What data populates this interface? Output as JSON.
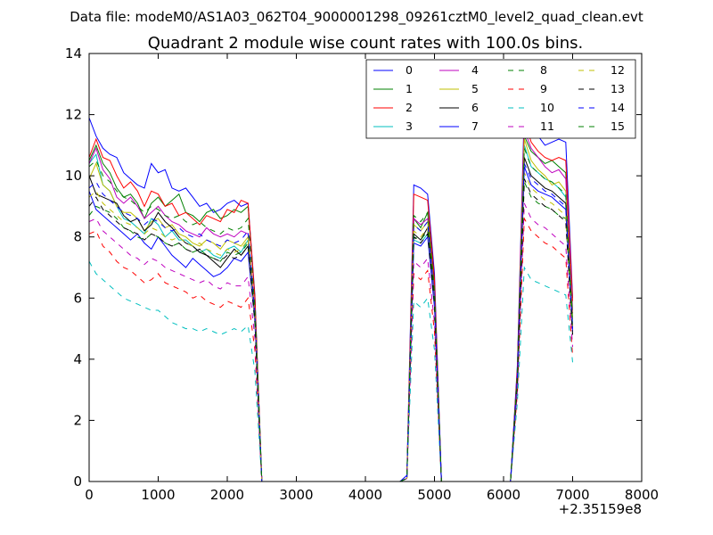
{
  "header": {
    "suptitle": "Data file: modeM0/AS1A03_062T04_9000001298_09261cztM0_level2_quad_clean.evt"
  },
  "chart_data": {
    "type": "line",
    "title": "Quadrant 2 module wise count rates with 100.0s bins.",
    "xlabel": "",
    "ylabel": "",
    "x_offset_label": "+2.35159e8",
    "xlim": [
      0,
      8000
    ],
    "ylim": [
      0,
      14
    ],
    "xticks": [
      0,
      1000,
      2000,
      3000,
      4000,
      5000,
      6000,
      7000,
      8000
    ],
    "yticks": [
      0,
      2,
      4,
      6,
      8,
      10,
      12,
      14
    ],
    "grid": false,
    "legend_position": "top-right",
    "legend_columns": 4,
    "x": [
      0,
      100,
      200,
      300,
      400,
      500,
      600,
      700,
      800,
      900,
      1000,
      1100,
      1200,
      1300,
      1400,
      1500,
      1600,
      1700,
      1800,
      1900,
      2000,
      2100,
      2200,
      2300,
      2400,
      2500,
      2600,
      2700,
      2800,
      2900,
      3000,
      3100,
      3200,
      3300,
      3400,
      3500,
      3600,
      3700,
      3800,
      3900,
      4000,
      4100,
      4200,
      4300,
      4400,
      4500,
      4600,
      4700,
      4800,
      4900,
      5000,
      5100,
      5200,
      5300,
      5400,
      5500,
      5600,
      5700,
      5800,
      5900,
      6000,
      6100,
      6200,
      6300,
      6400,
      6500,
      6600,
      6700,
      6800,
      6900,
      7000
    ],
    "series": [
      {
        "name": "0",
        "color": "#0000ff",
        "dashed": false,
        "values": [
          11.9,
          11.3,
          10.9,
          10.7,
          10.6,
          10.1,
          9.9,
          9.7,
          9.6,
          10.4,
          10.1,
          10.2,
          9.6,
          9.5,
          9.6,
          9.3,
          9.0,
          9.1,
          8.8,
          8.9,
          9.1,
          9.2,
          9.0,
          9.1,
          6.1,
          0,
          0,
          0,
          0,
          0,
          0,
          0,
          0,
          0,
          0,
          0,
          0,
          0,
          0,
          0,
          0,
          0,
          0,
          0,
          0,
          0,
          0.2,
          9.7,
          9.6,
          9.4,
          6.8,
          0,
          0,
          0,
          0,
          0,
          0,
          0,
          0,
          0,
          0,
          0,
          3.8,
          12.2,
          11.6,
          11.3,
          11.0,
          11.1,
          11.2,
          11.1,
          6.0
        ]
      },
      {
        "name": "1",
        "color": "#008000",
        "dashed": false,
        "values": [
          10.5,
          11.0,
          10.4,
          10.1,
          9.6,
          9.3,
          9.4,
          9.1,
          8.6,
          9.1,
          9.3,
          9.0,
          9.2,
          9.4,
          8.8,
          8.7,
          8.5,
          8.8,
          8.9,
          8.6,
          8.7,
          8.9,
          8.8,
          9.0,
          6.0,
          0,
          0,
          0,
          0,
          0,
          0,
          0,
          0,
          0,
          0,
          0,
          0,
          0,
          0,
          0,
          0,
          0,
          0,
          0,
          0,
          0,
          0.1,
          8.6,
          8.3,
          8.8,
          6.4,
          0,
          0,
          0,
          0,
          0,
          0,
          0,
          0,
          0,
          0,
          0,
          3.6,
          11.3,
          10.8,
          10.6,
          10.4,
          10.5,
          10.3,
          10.1,
          5.6
        ]
      },
      {
        "name": "2",
        "color": "#ff0000",
        "dashed": false,
        "values": [
          10.6,
          11.2,
          10.6,
          10.5,
          10.0,
          9.6,
          9.8,
          9.5,
          9.0,
          9.5,
          9.4,
          9.0,
          9.1,
          8.7,
          8.8,
          8.6,
          8.4,
          8.7,
          8.6,
          8.5,
          8.9,
          8.8,
          9.2,
          9.1,
          6.0,
          0,
          0,
          0,
          0,
          0,
          0,
          0,
          0,
          0,
          0,
          0,
          0,
          0,
          0,
          0,
          0,
          0,
          0,
          0,
          0,
          0,
          0.1,
          9.4,
          9.3,
          9.2,
          6.6,
          0,
          0,
          0,
          0,
          0,
          0,
          0,
          0,
          0,
          0,
          0,
          3.7,
          11.8,
          11.1,
          10.8,
          10.6,
          10.5,
          10.6,
          10.5,
          5.9
        ]
      },
      {
        "name": "3",
        "color": "#00bfbf",
        "dashed": false,
        "values": [
          10.4,
          10.7,
          9.7,
          9.5,
          9.0,
          8.6,
          8.5,
          8.3,
          8.1,
          8.6,
          8.4,
          8.0,
          8.2,
          7.9,
          7.9,
          7.7,
          7.5,
          7.6,
          7.4,
          7.3,
          7.6,
          7.7,
          7.5,
          7.9,
          5.3,
          0,
          0,
          0,
          0,
          0,
          0,
          0,
          0,
          0,
          0,
          0,
          0,
          0,
          0,
          0,
          0,
          0,
          0,
          0,
          0,
          0,
          0.1,
          7.9,
          7.8,
          8.1,
          5.8,
          0,
          0,
          0,
          0,
          0,
          0,
          0,
          0,
          0,
          0,
          0,
          3.3,
          11.0,
          10.3,
          10.1,
          9.9,
          9.8,
          9.6,
          9.3,
          5.1
        ]
      },
      {
        "name": "4",
        "color": "#bf00bf",
        "dashed": false,
        "values": [
          10.4,
          10.9,
          10.2,
          9.9,
          9.3,
          9.1,
          9.3,
          9.0,
          8.6,
          8.8,
          9.0,
          8.7,
          8.5,
          8.4,
          8.2,
          8.1,
          8.0,
          8.3,
          8.1,
          8.0,
          8.1,
          8.0,
          8.2,
          8.1,
          5.6,
          0,
          0,
          0,
          0,
          0,
          0,
          0,
          0,
          0,
          0,
          0,
          0,
          0,
          0,
          0,
          0,
          0,
          0,
          0,
          0,
          0,
          0.1,
          8.6,
          8.4,
          8.6,
          6.2,
          0,
          0,
          0,
          0,
          0,
          0,
          0,
          0,
          0,
          0,
          0,
          3.5,
          11.5,
          10.9,
          10.6,
          10.3,
          10.1,
          10.2,
          9.9,
          5.5
        ]
      },
      {
        "name": "5",
        "color": "#bfbf00",
        "dashed": false,
        "values": [
          9.9,
          10.4,
          9.7,
          9.5,
          9.0,
          8.8,
          8.8,
          8.6,
          8.2,
          8.5,
          8.6,
          8.3,
          8.4,
          8.1,
          8.0,
          7.8,
          7.7,
          7.9,
          7.8,
          7.6,
          7.9,
          7.8,
          7.7,
          8.0,
          5.4,
          0,
          0,
          0,
          0,
          0,
          0,
          0,
          0,
          0,
          0,
          0,
          0,
          0,
          0,
          0,
          0,
          0,
          0,
          0,
          0,
          0,
          0.1,
          8.4,
          8.2,
          8.5,
          6.1,
          0,
          0,
          0,
          0,
          0,
          0,
          0,
          0,
          0,
          0,
          0,
          3.4,
          11.2,
          10.5,
          10.2,
          10.0,
          9.7,
          9.8,
          9.5,
          5.3
        ]
      },
      {
        "name": "6",
        "color": "#000000",
        "dashed": false,
        "values": [
          10.0,
          9.4,
          9.3,
          9.2,
          9.1,
          8.7,
          8.5,
          8.6,
          8.2,
          8.4,
          8.8,
          8.5,
          8.3,
          8.0,
          7.8,
          7.7,
          7.5,
          7.4,
          7.2,
          7.0,
          7.3,
          7.6,
          7.4,
          7.7,
          5.3,
          0,
          0,
          0,
          0,
          0,
          0,
          0,
          0,
          0,
          0,
          0,
          0,
          0,
          0,
          0,
          0,
          0,
          0,
          0,
          0,
          0,
          0.1,
          8.1,
          7.9,
          8.3,
          5.9,
          0,
          0,
          0,
          0,
          0,
          0,
          0,
          0,
          0,
          0,
          0,
          3.4,
          10.6,
          10.0,
          9.8,
          9.6,
          9.5,
          9.3,
          9.1,
          5.0
        ]
      },
      {
        "name": "7",
        "color": "#0000ff",
        "dashed": false,
        "values": [
          9.5,
          8.9,
          8.7,
          8.5,
          8.3,
          8.1,
          7.9,
          8.1,
          7.8,
          7.6,
          8.0,
          7.7,
          7.4,
          7.2,
          7.0,
          7.3,
          7.1,
          6.9,
          6.7,
          6.8,
          7.0,
          7.3,
          7.2,
          7.5,
          5.2,
          0,
          0,
          0,
          0,
          0,
          0,
          0,
          0,
          0,
          0,
          0,
          0,
          0,
          0,
          0,
          0,
          0,
          0,
          0,
          0,
          0,
          0.1,
          7.8,
          7.7,
          8.0,
          5.7,
          0,
          0,
          0,
          0,
          0,
          0,
          0,
          0,
          0,
          0,
          0,
          3.3,
          10.3,
          9.7,
          9.5,
          9.4,
          9.3,
          9.1,
          8.9,
          4.9
        ]
      },
      {
        "name": "8",
        "color": "#008000",
        "dashed": true,
        "values": [
          8.7,
          9.0,
          8.9,
          8.8,
          8.6,
          8.3,
          8.2,
          8.0,
          7.9,
          8.1,
          8.0,
          7.8,
          7.7,
          7.8,
          7.6,
          7.5,
          7.6,
          7.4,
          7.3,
          7.2,
          7.5,
          7.4,
          7.5,
          7.8,
          5.2,
          0,
          0,
          0,
          0,
          0,
          0,
          0,
          0,
          0,
          0,
          0,
          0,
          0,
          0,
          0,
          0,
          0,
          0,
          0,
          0,
          0,
          0.1,
          8.0,
          7.9,
          8.2,
          5.8,
          0,
          0,
          0,
          0,
          0,
          0,
          0,
          0,
          0,
          0,
          0,
          3.2,
          9.8,
          9.3,
          9.1,
          9.0,
          8.9,
          8.7,
          8.6,
          4.8
        ]
      },
      {
        "name": "9",
        "color": "#ff0000",
        "dashed": true,
        "values": [
          8.1,
          8.2,
          7.7,
          7.5,
          7.2,
          7.0,
          6.9,
          6.7,
          6.5,
          6.6,
          6.8,
          6.5,
          6.4,
          6.3,
          6.2,
          6.0,
          6.1,
          5.9,
          5.8,
          5.7,
          5.9,
          5.8,
          5.7,
          6.0,
          4.3,
          0,
          0,
          0,
          0,
          0,
          0,
          0,
          0,
          0,
          0,
          0,
          0,
          0,
          0,
          0,
          0,
          0,
          0,
          0,
          0,
          0,
          0.1,
          6.8,
          6.6,
          6.9,
          4.9,
          0,
          0,
          0,
          0,
          0,
          0,
          0,
          0,
          0,
          0,
          0,
          2.9,
          8.6,
          8.2,
          8.0,
          7.8,
          7.7,
          7.5,
          7.3,
          4.1
        ]
      },
      {
        "name": "10",
        "color": "#00bfbf",
        "dashed": true,
        "values": [
          7.2,
          6.8,
          6.6,
          6.4,
          6.2,
          6.0,
          5.9,
          5.8,
          5.7,
          5.6,
          5.6,
          5.4,
          5.2,
          5.1,
          5.0,
          5.0,
          4.9,
          5.0,
          4.9,
          4.8,
          4.9,
          5.0,
          4.9,
          5.1,
          3.6,
          0,
          0,
          0,
          0,
          0,
          0,
          0,
          0,
          0,
          0,
          0,
          0,
          0,
          0,
          0,
          0,
          0,
          0,
          0,
          0,
          0,
          0.1,
          5.9,
          5.7,
          6.0,
          4.3,
          0,
          0,
          0,
          0,
          0,
          0,
          0,
          0,
          0,
          0,
          0,
          2.6,
          7.0,
          6.6,
          6.5,
          6.4,
          6.3,
          6.2,
          6.1,
          3.9
        ]
      },
      {
        "name": "11",
        "color": "#bf00bf",
        "dashed": true,
        "values": [
          8.5,
          8.6,
          8.2,
          8.0,
          7.8,
          7.6,
          7.4,
          7.3,
          7.1,
          7.3,
          7.2,
          7.0,
          6.9,
          6.8,
          6.7,
          6.6,
          6.5,
          6.6,
          6.4,
          6.3,
          6.5,
          6.4,
          6.4,
          6.7,
          4.7,
          0,
          0,
          0,
          0,
          0,
          0,
          0,
          0,
          0,
          0,
          0,
          0,
          0,
          0,
          0,
          0,
          0,
          0,
          0,
          0,
          0,
          0.1,
          7.2,
          7.0,
          7.3,
          5.2,
          0,
          0,
          0,
          0,
          0,
          0,
          0,
          0,
          0,
          0,
          0,
          3.0,
          9.1,
          8.6,
          8.4,
          8.3,
          8.1,
          7.9,
          7.7,
          4.4
        ]
      },
      {
        "name": "12",
        "color": "#bfbf00",
        "dashed": true,
        "values": [
          9.3,
          9.5,
          9.1,
          8.9,
          8.7,
          8.5,
          8.4,
          8.3,
          8.1,
          8.3,
          8.2,
          8.0,
          7.9,
          8.0,
          7.8,
          7.7,
          7.8,
          7.6,
          7.5,
          7.4,
          7.6,
          7.5,
          7.6,
          7.9,
          5.3,
          0,
          0,
          0,
          0,
          0,
          0,
          0,
          0,
          0,
          0,
          0,
          0,
          0,
          0,
          0,
          0,
          0,
          0,
          0,
          0,
          0,
          0.1,
          8.2,
          8.0,
          8.3,
          5.9,
          0,
          0,
          0,
          0,
          0,
          0,
          0,
          0,
          0,
          0,
          0,
          3.3,
          10.1,
          9.6,
          9.4,
          9.2,
          9.1,
          8.9,
          8.7,
          4.9
        ]
      },
      {
        "name": "13",
        "color": "#000000",
        "dashed": true,
        "values": [
          9.0,
          9.3,
          8.9,
          8.7,
          8.5,
          8.3,
          8.2,
          8.1,
          7.9,
          8.1,
          8.0,
          7.8,
          7.7,
          7.8,
          7.6,
          7.5,
          7.6,
          7.4,
          7.3,
          7.2,
          7.4,
          7.3,
          7.4,
          7.7,
          5.2,
          0,
          0,
          0,
          0,
          0,
          0,
          0,
          0,
          0,
          0,
          0,
          0,
          0,
          0,
          0,
          0,
          0,
          0,
          0,
          0,
          0,
          0.1,
          8.0,
          7.8,
          8.1,
          5.8,
          0,
          0,
          0,
          0,
          0,
          0,
          0,
          0,
          0,
          0,
          0,
          3.2,
          9.9,
          9.4,
          9.2,
          9.0,
          8.9,
          8.7,
          8.5,
          4.8
        ]
      },
      {
        "name": "14",
        "color": "#0000ff",
        "dashed": true,
        "values": [
          9.6,
          9.8,
          9.4,
          9.2,
          9.0,
          8.8,
          8.7,
          8.6,
          8.4,
          8.6,
          8.5,
          8.3,
          8.2,
          8.3,
          8.1,
          8.0,
          8.1,
          7.9,
          7.8,
          7.7,
          7.9,
          7.8,
          7.9,
          8.2,
          5.5,
          0,
          0,
          0,
          0,
          0,
          0,
          0,
          0,
          0,
          0,
          0,
          0,
          0,
          0,
          0,
          0,
          0,
          0,
          0,
          0,
          0,
          0.1,
          8.4,
          8.2,
          8.5,
          6.0,
          0,
          0,
          0,
          0,
          0,
          0,
          0,
          0,
          0,
          0,
          0,
          3.4,
          10.4,
          9.9,
          9.7,
          9.5,
          9.4,
          9.2,
          9.0,
          5.0
        ]
      },
      {
        "name": "15",
        "color": "#008000",
        "dashed": true,
        "values": [
          10.3,
          10.5,
          10.0,
          9.8,
          9.5,
          9.3,
          9.2,
          9.0,
          8.8,
          9.0,
          8.9,
          8.7,
          8.6,
          8.7,
          8.5,
          8.4,
          8.5,
          8.3,
          8.2,
          8.1,
          8.3,
          8.2,
          8.3,
          8.6,
          5.7,
          0,
          0,
          0,
          0,
          0,
          0,
          0,
          0,
          0,
          0,
          0,
          0,
          0,
          0,
          0,
          0,
          0,
          0,
          0,
          0,
          0,
          0.1,
          8.7,
          8.5,
          8.8,
          6.2,
          0,
          0,
          0,
          0,
          0,
          0,
          0,
          0,
          0,
          0,
          0,
          3.5,
          10.9,
          10.3,
          10.1,
          9.9,
          9.8,
          9.6,
          9.4,
          5.2
        ]
      }
    ]
  }
}
